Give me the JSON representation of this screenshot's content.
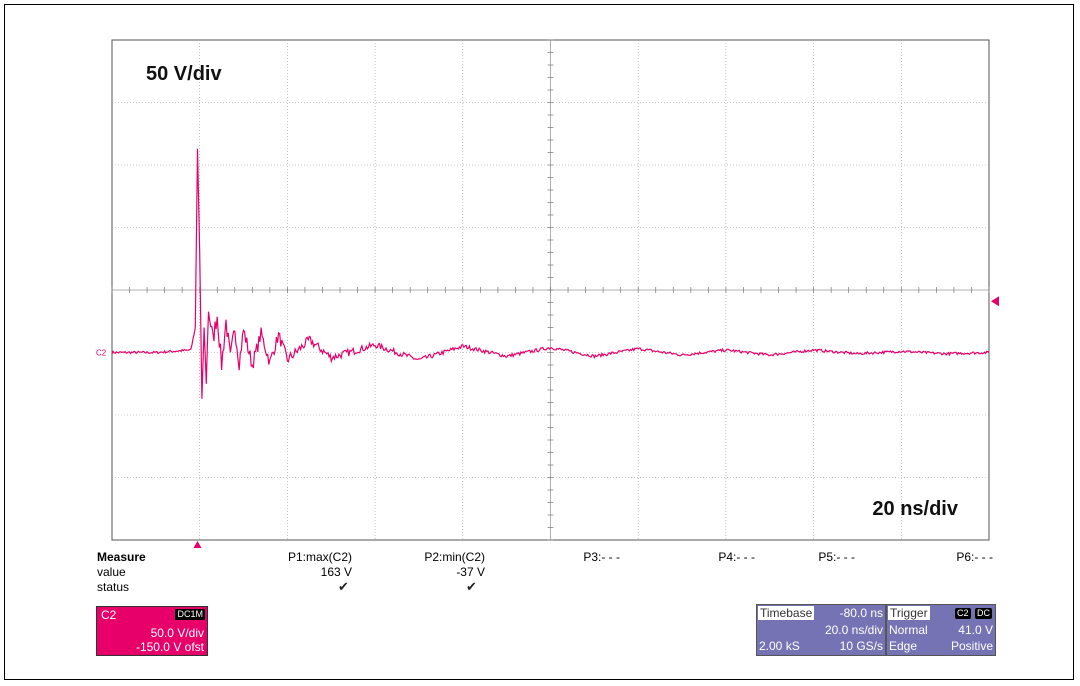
{
  "chart_data": {
    "type": "line",
    "title": "",
    "annotations": {
      "vertical_scale": "50 V/div",
      "horizontal_scale": "20 ns/div"
    },
    "grid": true,
    "divisions": {
      "x": 10,
      "y": 8
    },
    "xlim": [
      0,
      200
    ],
    "ylim": [
      -150,
      250
    ],
    "x_unit": "ns",
    "y_unit": "V",
    "series": [
      {
        "name": "C2",
        "x": [
          0,
          10,
          18,
          19,
          19.5,
          20,
          20.5,
          21,
          21.5,
          22,
          23,
          24,
          25,
          26,
          27,
          28,
          29,
          30,
          32,
          34,
          36,
          38,
          40,
          45,
          50,
          60,
          70,
          80,
          90,
          100,
          110,
          120,
          130,
          140,
          150,
          160,
          170,
          180,
          190,
          200
        ],
        "y": [
          0,
          0,
          2,
          20,
          163,
          80,
          -37,
          20,
          -25,
          35,
          10,
          30,
          -10,
          25,
          -5,
          20,
          -8,
          18,
          -10,
          15,
          -8,
          14,
          -6,
          10,
          -4,
          6,
          -6,
          5,
          -3,
          4,
          -3,
          3,
          -2,
          2,
          -2,
          2,
          -1,
          1,
          -1,
          0
        ]
      }
    ],
    "channel_marker": "C2",
    "trigger_level": 41.0
  },
  "measure": {
    "title": "Measure",
    "row_value": "value",
    "row_status": "status",
    "params": [
      {
        "label": "P1:max(C2)",
        "value": "163 V",
        "ok": true
      },
      {
        "label": "P2:min(C2)",
        "value": "-37 V",
        "ok": true
      },
      {
        "label": "P3:- - -",
        "value": "",
        "ok": false
      },
      {
        "label": "P4:- - -",
        "value": "",
        "ok": false
      },
      {
        "label": "P5:- - -",
        "value": "",
        "ok": false
      },
      {
        "label": "P6:- - -",
        "value": "",
        "ok": false
      }
    ],
    "check_glyph": "✔"
  },
  "channel": {
    "name": "C2",
    "coupling": "DC1M",
    "scale": "50.0 V/div",
    "offset": "-150.0 V ofst",
    "color": "#e8006a"
  },
  "timebase": {
    "label": "Timebase",
    "delay": "-80.0 ns",
    "scale": "20.0 ns/div",
    "samples": "2.00 kS",
    "rate": "10 GS/s"
  },
  "trigger": {
    "label": "Trigger",
    "badge_ch": "C2",
    "badge_coupling": "DC",
    "mode": "Normal",
    "level": "41.0 V",
    "type": "Edge",
    "slope": "Positive"
  },
  "colors": {
    "trace": "#e8006a",
    "panel": "#7573b4",
    "grid": "#999999"
  }
}
